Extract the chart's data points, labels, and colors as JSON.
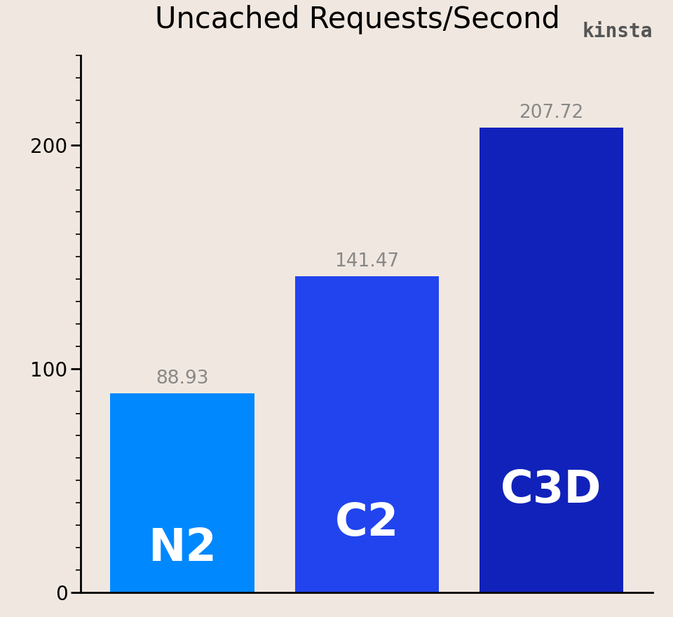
{
  "categories": [
    "N2",
    "C2",
    "C3D"
  ],
  "values": [
    88.93,
    141.47,
    207.72
  ],
  "bar_colors": [
    "#0088FF",
    "#2244EE",
    "#1122BB"
  ],
  "background_color": "#f0e8e0",
  "title": "Uncached Requests/Second",
  "title_fontsize": 30,
  "bar_label_color": "white",
  "bar_label_fontsize": 46,
  "kinsta_text": "kinsta",
  "kinsta_color": "#555555",
  "kinsta_fontsize": 20,
  "ylim": [
    0,
    240
  ],
  "yticks": [
    0,
    100,
    200
  ],
  "ytick_fontsize": 20,
  "value_label_fontsize": 19,
  "value_label_color": "#888888",
  "bar_gap": 0.08,
  "bar_width": 0.78
}
